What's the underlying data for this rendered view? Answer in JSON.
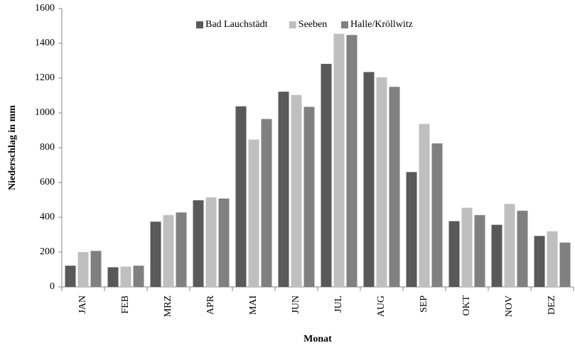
{
  "chart_data": {
    "type": "bar",
    "y_label": "Niederschlag in mm",
    "x_label": "Monat",
    "categories": [
      "JAN",
      "FEB",
      "MRZ",
      "APR",
      "MAI",
      "JUN",
      "JUL",
      "AUG",
      "SEP",
      "OKT",
      "NOV",
      "DEZ"
    ],
    "series": [
      {
        "name": "Bad Lauchstädt",
        "color": "#595959",
        "values": [
          122,
          113,
          375,
          498,
          1038,
          1122,
          1282,
          1235,
          660,
          378,
          357,
          293
        ]
      },
      {
        "name": "Seeben",
        "color": "#bfbfbf",
        "values": [
          200,
          117,
          413,
          515,
          847,
          1103,
          1455,
          1205,
          937,
          455,
          477,
          320
        ]
      },
      {
        "name": "Halle/Kröllwitz",
        "color": "#808080",
        "values": [
          207,
          122,
          428,
          508,
          965,
          1035,
          1448,
          1150,
          825,
          413,
          438,
          255
        ]
      }
    ],
    "ylim": [
      0,
      1600
    ],
    "yticks": [
      0,
      200,
      400,
      600,
      800,
      1000,
      1200,
      1400,
      1600
    ],
    "legend": "top"
  }
}
